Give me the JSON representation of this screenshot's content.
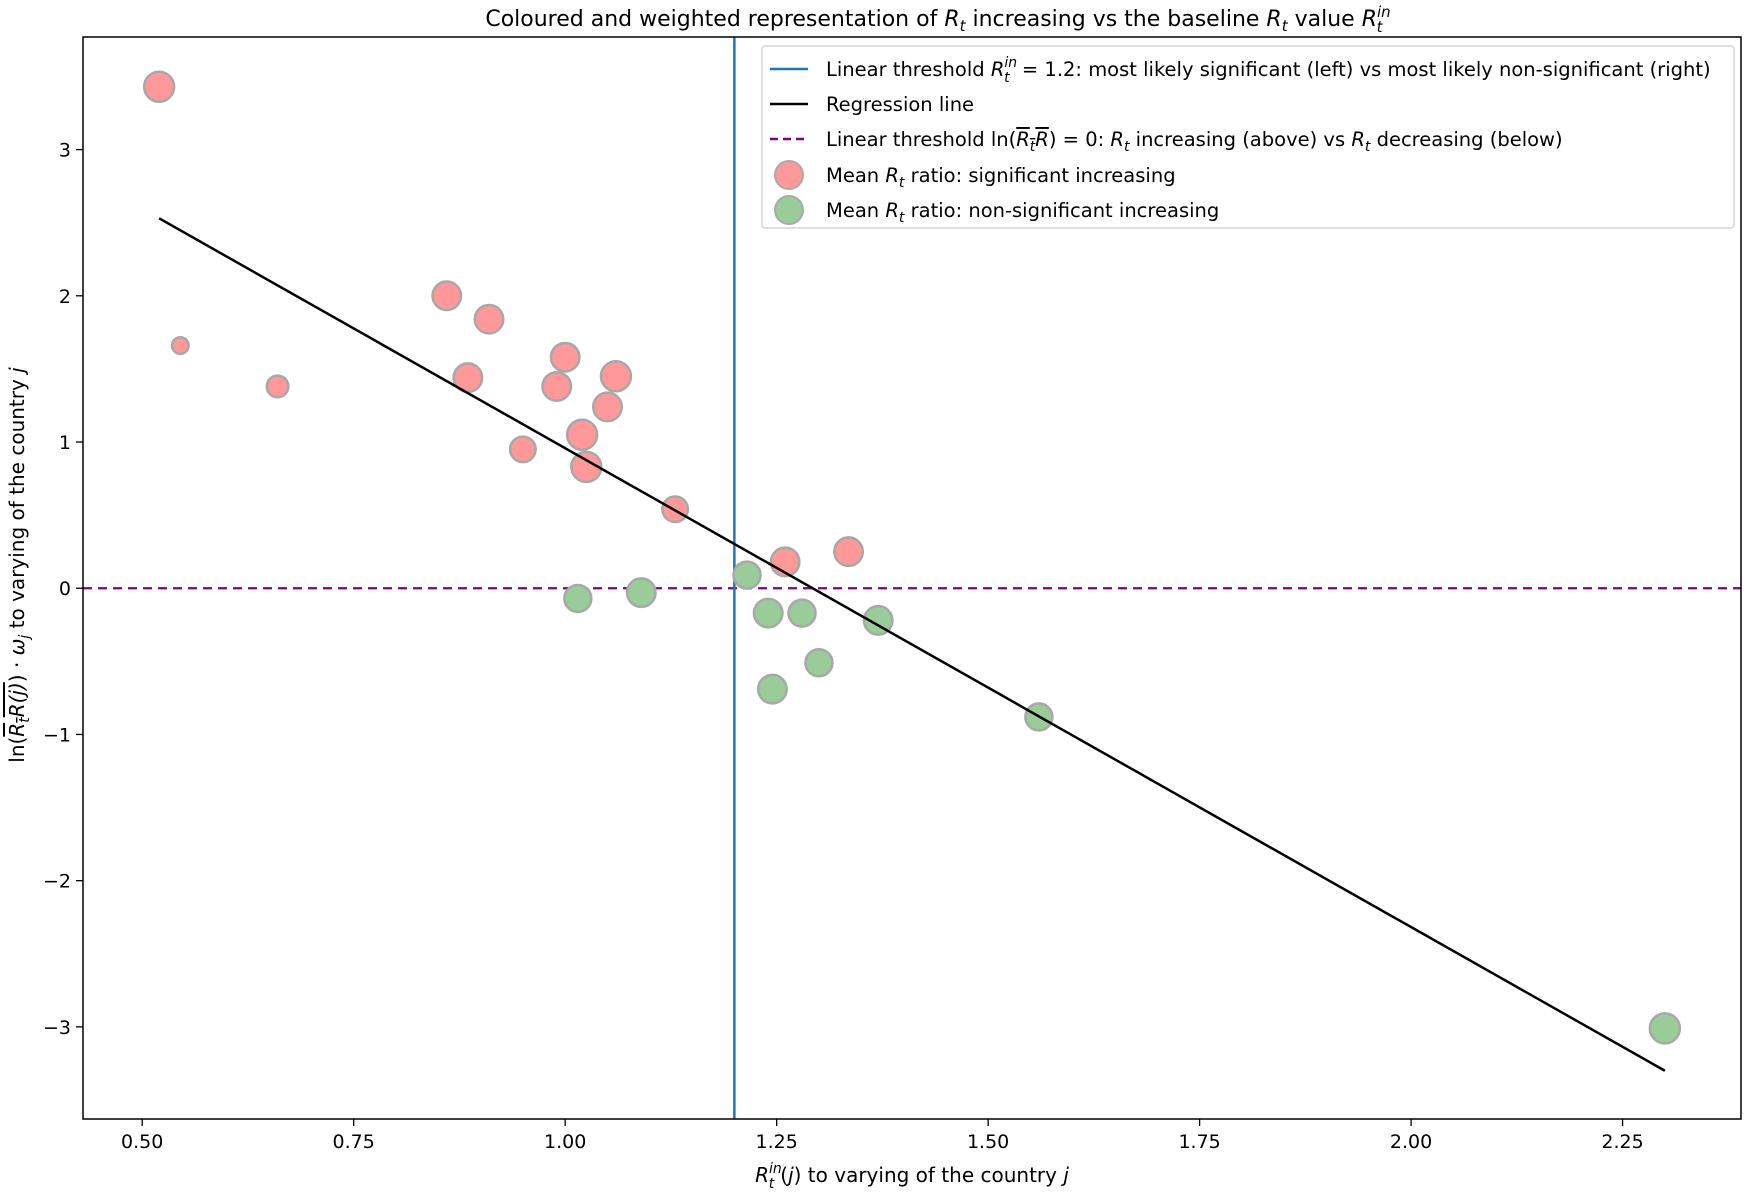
{
  "chart_data": {
    "type": "scatter",
    "title": "Coloured and weighted representation of R_t increasing vs the baseline R_t value R_t^in",
    "xlabel": "R_t^in(j) to varying of the country j",
    "ylabel": "ln(R_tR(j)) · ω_j to varying of the country j",
    "xlim": [
      0.43,
      2.39
    ],
    "ylim": [
      -3.63,
      3.77
    ],
    "x_ticks": [
      "0.50",
      "0.75",
      "1.00",
      "1.25",
      "1.50",
      "1.75",
      "2.00",
      "2.25"
    ],
    "x_tick_values": [
      0.5,
      0.75,
      1.0,
      1.25,
      1.5,
      1.75,
      2.0,
      2.25
    ],
    "y_ticks": [
      "3",
      "2",
      "1",
      "0",
      "−1",
      "−2",
      "−3"
    ],
    "y_tick_values": [
      3,
      2,
      1,
      0,
      -1,
      -2,
      -3
    ],
    "grid": false,
    "legend_position": "top-right",
    "vertical_threshold": {
      "x": 1.2,
      "color": "#1f77b4"
    },
    "horizontal_threshold": {
      "y": 0,
      "color": "#800080"
    },
    "regression_line": {
      "x": [
        0.52,
        2.3
      ],
      "y": [
        2.53,
        -3.3
      ],
      "color": "#000000"
    },
    "legend": [
      {
        "key": "vline",
        "label": "Linear threshold R_t^in = 1.2: most likely significant (left) vs most likely non-significant (right)",
        "color": "#1f77b4"
      },
      {
        "key": "reg",
        "label": "Regression line",
        "color": "#000000"
      },
      {
        "key": "hline",
        "label": "Linear threshold ln(R_tR) = 0: R_t increasing (above) vs R_t decreasing (below)",
        "color": "#800080"
      },
      {
        "key": "sig",
        "label": "Mean R_t ratio: significant increasing",
        "color": "#ff9999"
      },
      {
        "key": "nonsig",
        "label": "Mean R_t ratio: non-significant increasing",
        "color": "#99cc99"
      }
    ],
    "series": [
      {
        "name": "Mean R_t ratio: significant increasing",
        "color": "#ff9999",
        "points": [
          {
            "x": 0.52,
            "y": 3.43,
            "w": 1.0
          },
          {
            "x": 0.545,
            "y": 1.66,
            "w": 0.55
          },
          {
            "x": 0.66,
            "y": 1.38,
            "w": 0.72
          },
          {
            "x": 0.86,
            "y": 2.0,
            "w": 0.95
          },
          {
            "x": 0.885,
            "y": 1.44,
            "w": 0.95
          },
          {
            "x": 0.91,
            "y": 1.84,
            "w": 0.95
          },
          {
            "x": 0.95,
            "y": 0.95,
            "w": 0.85
          },
          {
            "x": 0.99,
            "y": 1.38,
            "w": 0.95
          },
          {
            "x": 1.0,
            "y": 1.58,
            "w": 0.95
          },
          {
            "x": 1.02,
            "y": 1.05,
            "w": 1.0
          },
          {
            "x": 1.025,
            "y": 0.83,
            "w": 1.0
          },
          {
            "x": 1.05,
            "y": 1.24,
            "w": 0.95
          },
          {
            "x": 1.06,
            "y": 1.45,
            "w": 1.0
          },
          {
            "x": 1.13,
            "y": 0.54,
            "w": 0.85
          },
          {
            "x": 1.26,
            "y": 0.18,
            "w": 0.95
          },
          {
            "x": 1.335,
            "y": 0.25,
            "w": 0.95
          }
        ]
      },
      {
        "name": "Mean R_t ratio: non-significant increasing",
        "color": "#99cc99",
        "points": [
          {
            "x": 1.015,
            "y": -0.07,
            "w": 0.9
          },
          {
            "x": 1.09,
            "y": -0.03,
            "w": 0.95
          },
          {
            "x": 1.215,
            "y": 0.09,
            "w": 0.9
          },
          {
            "x": 1.24,
            "y": -0.17,
            "w": 0.95
          },
          {
            "x": 1.245,
            "y": -0.69,
            "w": 0.95
          },
          {
            "x": 1.28,
            "y": -0.17,
            "w": 0.9
          },
          {
            "x": 1.3,
            "y": -0.51,
            "w": 0.9
          },
          {
            "x": 1.37,
            "y": -0.22,
            "w": 0.95
          },
          {
            "x": 1.56,
            "y": -0.88,
            "w": 0.9
          },
          {
            "x": 2.3,
            "y": -3.01,
            "w": 1.0
          }
        ]
      }
    ]
  }
}
